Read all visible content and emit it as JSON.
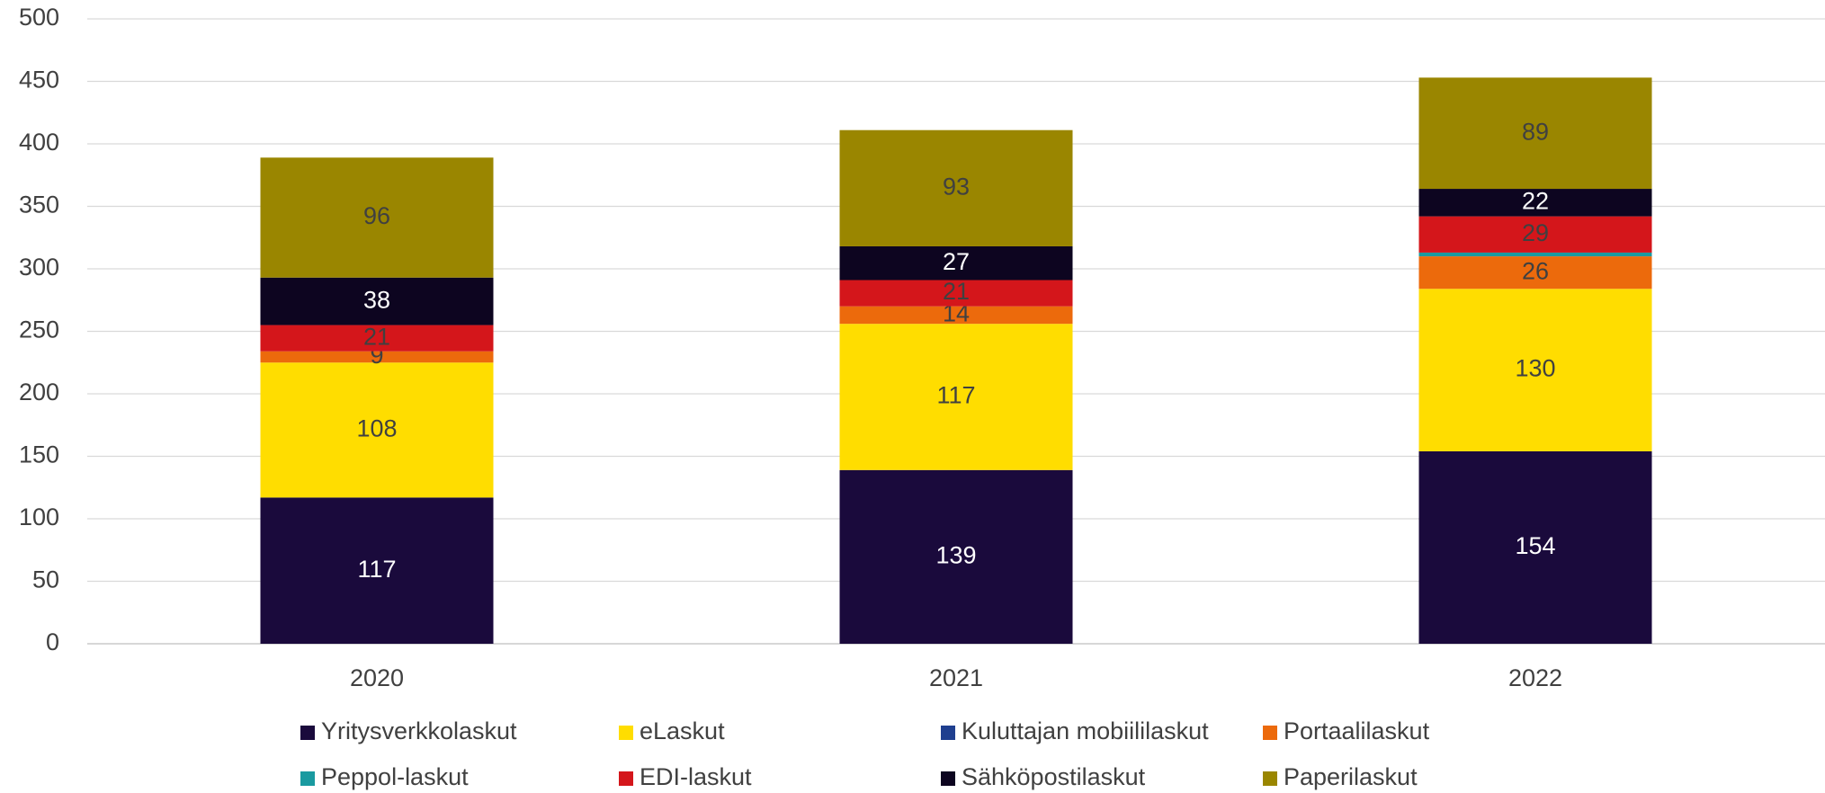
{
  "chart_data": {
    "type": "stacked_bar",
    "categories": [
      "2020",
      "2021",
      "2022"
    ],
    "series": [
      {
        "name": "Yritysverkkolaskut",
        "color": "#1a0a3c",
        "values": [
          117,
          139,
          154
        ]
      },
      {
        "name": "eLaskut",
        "color": "#ffdd00",
        "values": [
          108,
          117,
          130
        ]
      },
      {
        "name": "Kuluttajan mobiililaskut",
        "color": "#1f3f8f",
        "values": [
          0,
          0,
          0
        ]
      },
      {
        "name": "Portaalilaskut",
        "color": "#ec6a0c",
        "values": [
          9,
          14,
          26
        ]
      },
      {
        "name": "Peppol-laskut",
        "color": "#1a9aa0",
        "values": [
          0,
          0,
          3
        ]
      },
      {
        "name": "EDI-laskut",
        "color": "#d4161b",
        "values": [
          21,
          21,
          29
        ]
      },
      {
        "name": "Sähköpostilaskut",
        "color": "#0d0520",
        "values": [
          38,
          27,
          22
        ]
      },
      {
        "name": "Paperilaskut",
        "color": "#9a8600",
        "values": [
          96,
          93,
          89
        ]
      }
    ],
    "ylim": [
      0,
      500
    ],
    "yticks": [
      0,
      50,
      100,
      150,
      200,
      250,
      300,
      350,
      400,
      450,
      500
    ],
    "grid": true,
    "legend": "bottom"
  }
}
